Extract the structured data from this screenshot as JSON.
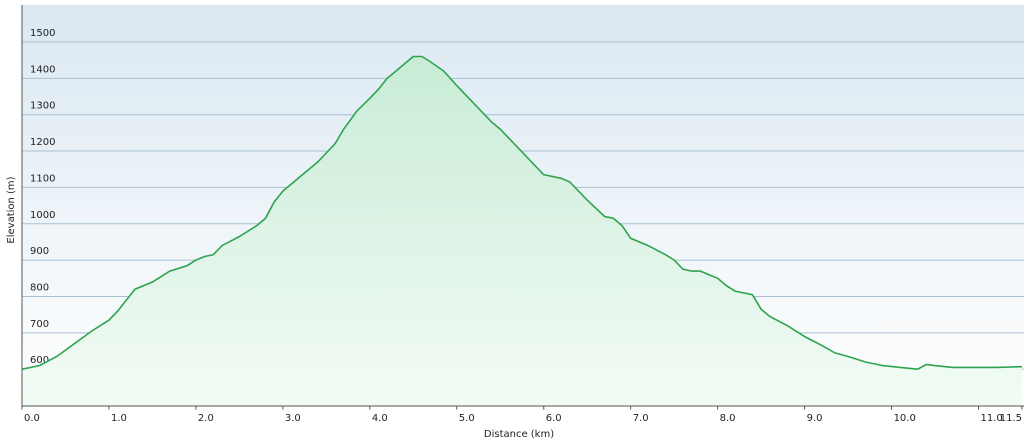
{
  "chart_data": {
    "type": "area",
    "x_label": "Distance  (km)",
    "y_label": "Elevation (m)",
    "x": [
      0,
      0.2,
      0.4,
      0.6,
      0.8,
      1.0,
      1.1,
      1.2,
      1.3,
      1.5,
      1.7,
      1.9,
      2.0,
      2.1,
      2.2,
      2.3,
      2.5,
      2.7,
      2.8,
      2.9,
      3.0,
      3.2,
      3.4,
      3.6,
      3.7,
      3.85,
      4.0,
      4.1,
      4.2,
      4.3,
      4.4,
      4.5,
      4.6,
      4.7,
      4.85,
      5.0,
      5.2,
      5.4,
      5.5,
      5.7,
      5.9,
      6.0,
      6.2,
      6.3,
      6.5,
      6.7,
      6.8,
      6.9,
      7.0,
      7.2,
      7.4,
      7.5,
      7.6,
      7.7,
      7.8,
      7.9,
      8.0,
      8.1,
      8.2,
      8.4,
      8.5,
      8.6,
      8.8,
      9.0,
      9.2,
      9.35,
      9.5,
      9.7,
      9.9,
      10.1,
      10.3,
      10.4,
      10.5,
      10.7,
      11.0,
      11.2,
      11.5
    ],
    "series": [
      {
        "color": "#2ea44f",
        "values": [
          600,
          610,
          635,
          670,
          705,
          735,
          760,
          790,
          820,
          840,
          870,
          885,
          900,
          910,
          915,
          940,
          965,
          995,
          1015,
          1060,
          1090,
          1130,
          1170,
          1220,
          1260,
          1310,
          1345,
          1370,
          1400,
          1420,
          1440,
          1460,
          1460,
          1445,
          1420,
          1380,
          1330,
          1280,
          1260,
          1210,
          1160,
          1135,
          1125,
          1115,
          1065,
          1020,
          1015,
          995,
          960,
          940,
          915,
          900,
          875,
          870,
          870,
          860,
          850,
          830,
          815,
          805,
          765,
          745,
          720,
          690,
          665,
          645,
          635,
          620,
          610,
          605,
          600,
          613,
          610,
          605,
          605,
          605,
          607
        ]
      }
    ],
    "xlim": [
      0,
      11.5
    ],
    "ylim": [
      500,
      1600
    ],
    "xticks": [
      {
        "value": 0,
        "label": "0.0"
      },
      {
        "value": 1,
        "label": "1.0"
      },
      {
        "value": 2,
        "label": "2.0"
      },
      {
        "value": 3,
        "label": "3.0"
      },
      {
        "value": 4,
        "label": "4.0"
      },
      {
        "value": 5,
        "label": "5.0"
      },
      {
        "value": 6,
        "label": "6.0"
      },
      {
        "value": 7,
        "label": "7.0"
      },
      {
        "value": 8,
        "label": "8.0"
      },
      {
        "value": 9,
        "label": "9.0"
      },
      {
        "value": 10,
        "label": "10.0"
      },
      {
        "value": 11,
        "label": "11.0"
      },
      {
        "value": 11.5,
        "label": "11.5"
      }
    ],
    "yticks": [
      600,
      700,
      800,
      900,
      1000,
      1100,
      1200,
      1300,
      1400,
      1500
    ],
    "grid": true
  }
}
